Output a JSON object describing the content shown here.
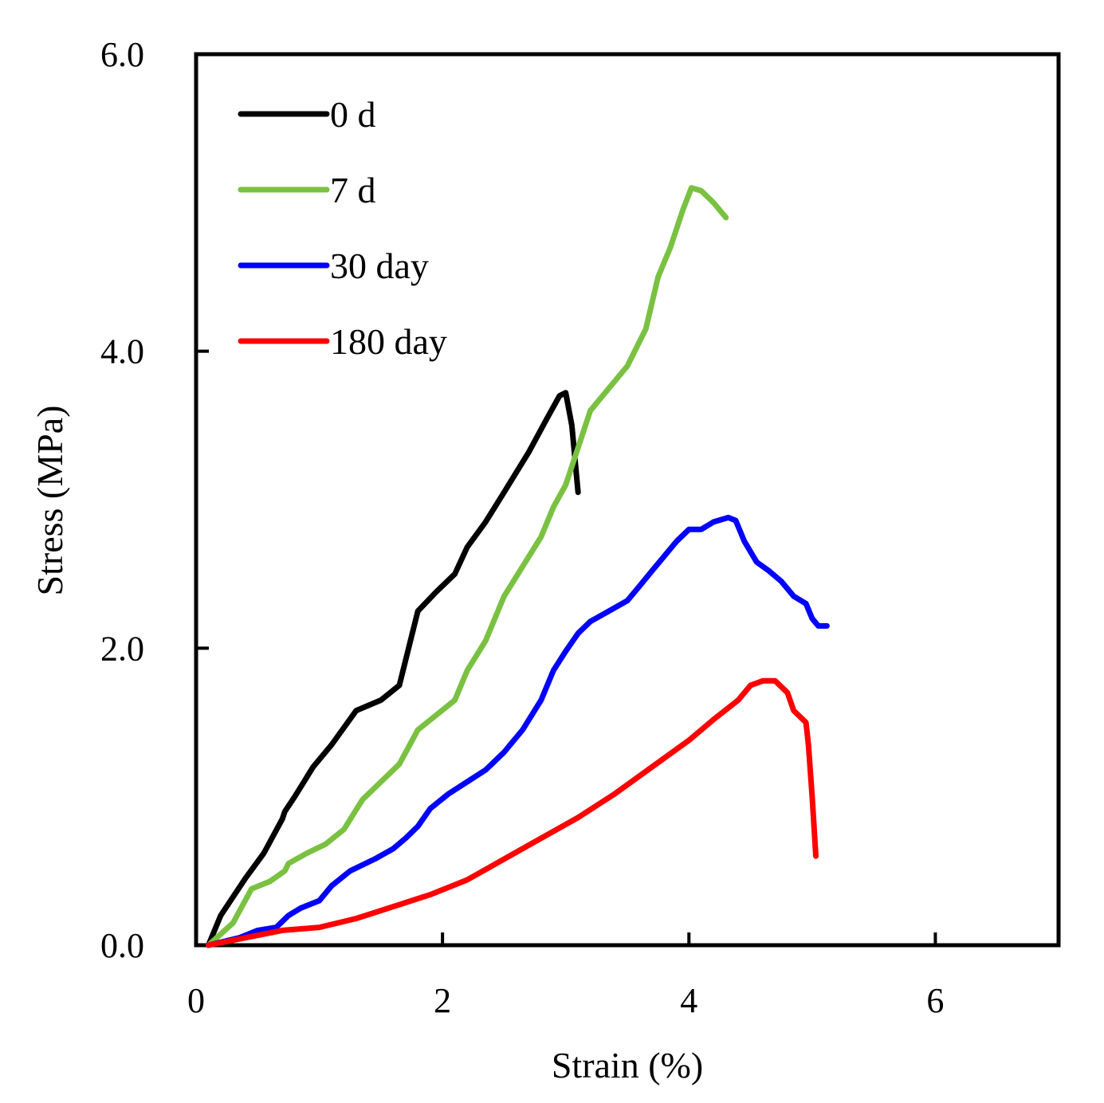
{
  "chart_data": {
    "type": "line",
    "title": "",
    "xlabel": "Strain (%)",
    "ylabel": "Stress (MPa)",
    "xlim": [
      0,
      7
    ],
    "ylim": [
      0,
      6
    ],
    "grid": false,
    "legend_position": "top-left",
    "x_ticks": [
      {
        "value": 0,
        "label": "0"
      },
      {
        "value": 2,
        "label": "2"
      },
      {
        "value": 4,
        "label": "4"
      },
      {
        "value": 6,
        "label": "6"
      }
    ],
    "y_ticks": [
      {
        "value": 0,
        "label": "0.0"
      },
      {
        "value": 2,
        "label": "2.0"
      },
      {
        "value": 4,
        "label": "4.0"
      },
      {
        "value": 6,
        "label": "6.0"
      }
    ],
    "series": [
      {
        "name": "0 d",
        "color": "#000000",
        "points": [
          [
            0.1,
            0.0
          ],
          [
            0.2,
            0.2
          ],
          [
            0.4,
            0.45
          ],
          [
            0.55,
            0.62
          ],
          [
            0.7,
            0.85
          ],
          [
            0.72,
            0.9
          ],
          [
            0.8,
            1.0
          ],
          [
            0.95,
            1.2
          ],
          [
            1.1,
            1.35
          ],
          [
            1.3,
            1.58
          ],
          [
            1.5,
            1.65
          ],
          [
            1.65,
            1.75
          ],
          [
            1.8,
            2.25
          ],
          [
            1.95,
            2.38
          ],
          [
            2.1,
            2.5
          ],
          [
            2.2,
            2.68
          ],
          [
            2.35,
            2.85
          ],
          [
            2.5,
            3.05
          ],
          [
            2.7,
            3.32
          ],
          [
            2.85,
            3.55
          ],
          [
            2.95,
            3.7
          ],
          [
            3.0,
            3.72
          ],
          [
            3.05,
            3.5
          ],
          [
            3.1,
            3.05
          ]
        ]
      },
      {
        "name": "7 d",
        "color": "#7ac142",
        "points": [
          [
            0.1,
            0.0
          ],
          [
            0.3,
            0.15
          ],
          [
            0.45,
            0.38
          ],
          [
            0.6,
            0.43
          ],
          [
            0.72,
            0.5
          ],
          [
            0.75,
            0.55
          ],
          [
            0.9,
            0.62
          ],
          [
            1.05,
            0.68
          ],
          [
            1.2,
            0.78
          ],
          [
            1.35,
            0.98
          ],
          [
            1.5,
            1.1
          ],
          [
            1.65,
            1.22
          ],
          [
            1.8,
            1.45
          ],
          [
            1.95,
            1.55
          ],
          [
            2.1,
            1.65
          ],
          [
            2.2,
            1.85
          ],
          [
            2.35,
            2.05
          ],
          [
            2.5,
            2.35
          ],
          [
            2.65,
            2.55
          ],
          [
            2.8,
            2.75
          ],
          [
            2.9,
            2.95
          ],
          [
            3.0,
            3.1
          ],
          [
            3.1,
            3.35
          ],
          [
            3.2,
            3.6
          ],
          [
            3.35,
            3.75
          ],
          [
            3.5,
            3.9
          ],
          [
            3.65,
            4.15
          ],
          [
            3.75,
            4.5
          ],
          [
            3.85,
            4.7
          ],
          [
            3.95,
            4.95
          ],
          [
            4.02,
            5.1
          ],
          [
            4.1,
            5.08
          ],
          [
            4.2,
            5.0
          ],
          [
            4.3,
            4.9
          ]
        ]
      },
      {
        "name": "30 day",
        "color": "#0000ff",
        "points": [
          [
            0.1,
            0.0
          ],
          [
            0.35,
            0.05
          ],
          [
            0.5,
            0.1
          ],
          [
            0.65,
            0.12
          ],
          [
            0.75,
            0.2
          ],
          [
            0.85,
            0.25
          ],
          [
            1.0,
            0.3
          ],
          [
            1.1,
            0.4
          ],
          [
            1.25,
            0.5
          ],
          [
            1.45,
            0.58
          ],
          [
            1.6,
            0.65
          ],
          [
            1.7,
            0.72
          ],
          [
            1.8,
            0.8
          ],
          [
            1.9,
            0.92
          ],
          [
            2.05,
            1.02
          ],
          [
            2.2,
            1.1
          ],
          [
            2.35,
            1.18
          ],
          [
            2.5,
            1.3
          ],
          [
            2.65,
            1.45
          ],
          [
            2.8,
            1.65
          ],
          [
            2.9,
            1.85
          ],
          [
            3.0,
            1.98
          ],
          [
            3.1,
            2.1
          ],
          [
            3.2,
            2.18
          ],
          [
            3.35,
            2.25
          ],
          [
            3.5,
            2.32
          ],
          [
            3.6,
            2.42
          ],
          [
            3.7,
            2.52
          ],
          [
            3.8,
            2.62
          ],
          [
            3.9,
            2.72
          ],
          [
            4.0,
            2.8
          ],
          [
            4.1,
            2.8
          ],
          [
            4.2,
            2.85
          ],
          [
            4.32,
            2.88
          ],
          [
            4.38,
            2.86
          ],
          [
            4.45,
            2.72
          ],
          [
            4.55,
            2.58
          ],
          [
            4.65,
            2.52
          ],
          [
            4.75,
            2.45
          ],
          [
            4.85,
            2.35
          ],
          [
            4.95,
            2.3
          ],
          [
            5.0,
            2.2
          ],
          [
            5.05,
            2.15
          ],
          [
            5.12,
            2.15
          ]
        ]
      },
      {
        "name": "180 day",
        "color": "#ff0000",
        "points": [
          [
            0.1,
            0.0
          ],
          [
            0.4,
            0.05
          ],
          [
            0.7,
            0.1
          ],
          [
            1.0,
            0.12
          ],
          [
            1.3,
            0.18
          ],
          [
            1.6,
            0.26
          ],
          [
            1.9,
            0.34
          ],
          [
            2.2,
            0.44
          ],
          [
            2.5,
            0.58
          ],
          [
            2.8,
            0.72
          ],
          [
            3.1,
            0.86
          ],
          [
            3.4,
            1.02
          ],
          [
            3.7,
            1.2
          ],
          [
            4.0,
            1.38
          ],
          [
            4.2,
            1.52
          ],
          [
            4.4,
            1.65
          ],
          [
            4.5,
            1.75
          ],
          [
            4.6,
            1.78
          ],
          [
            4.7,
            1.78
          ],
          [
            4.8,
            1.7
          ],
          [
            4.85,
            1.58
          ],
          [
            4.95,
            1.5
          ],
          [
            4.97,
            1.35
          ],
          [
            5.0,
            1.0
          ],
          [
            5.03,
            0.6
          ]
        ]
      }
    ]
  }
}
